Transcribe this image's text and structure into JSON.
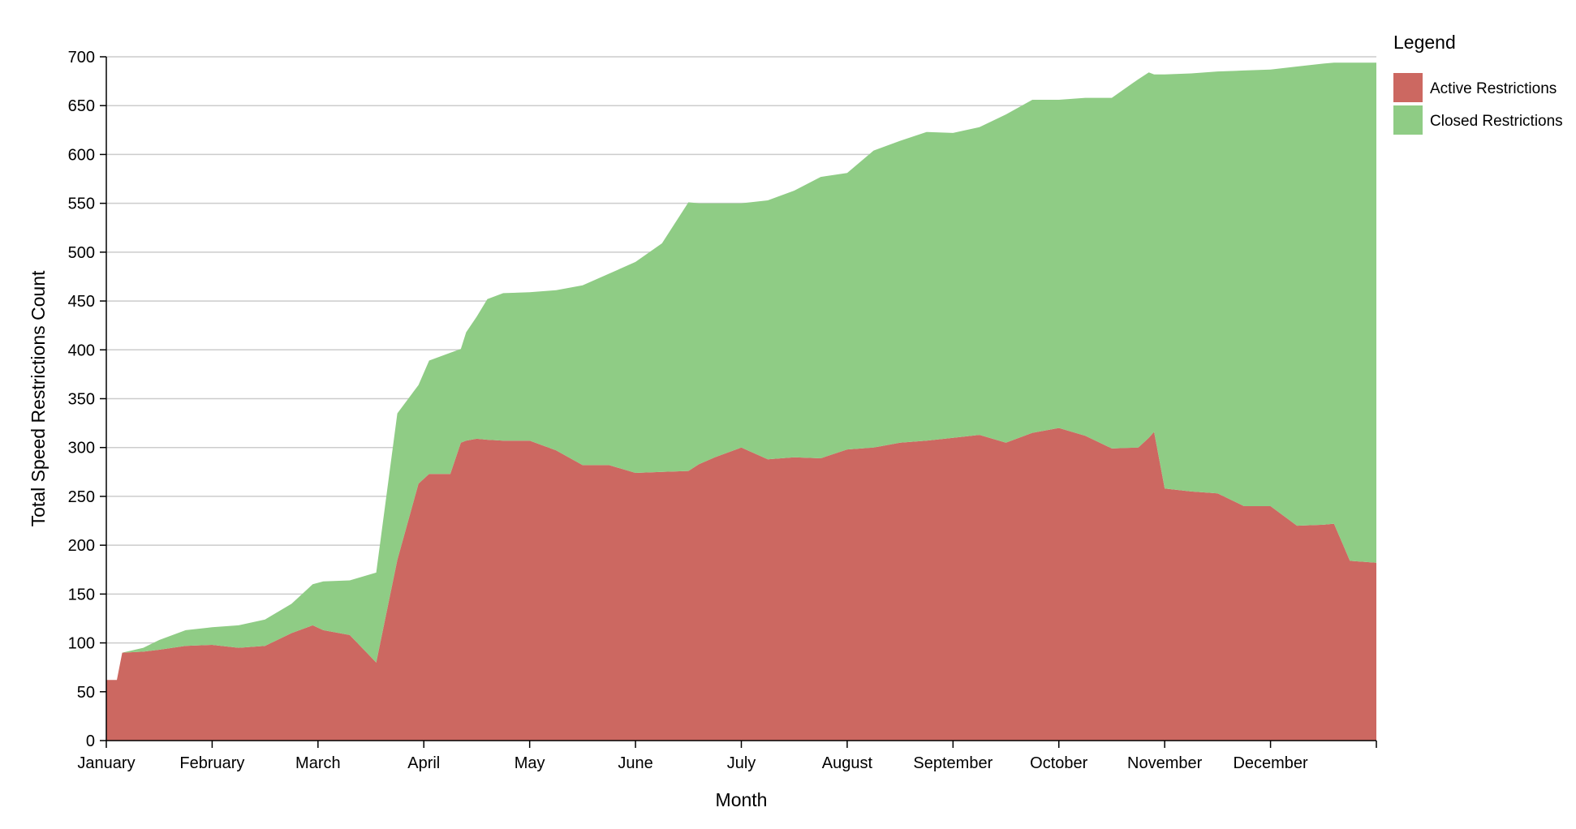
{
  "chart_data": {
    "type": "area",
    "stacked": true,
    "xlabel": "Month",
    "ylabel": "Total Speed Restrictions Count",
    "ylim": [
      0,
      700
    ],
    "yticks": [
      0,
      50,
      100,
      150,
      200,
      250,
      300,
      350,
      400,
      450,
      500,
      550,
      600,
      650,
      700
    ],
    "xticks": [
      "January",
      "February",
      "March",
      "April",
      "May",
      "June",
      "July",
      "August",
      "September",
      "October",
      "November",
      "December"
    ],
    "grid": "horizontal",
    "legend": {
      "title": "Legend",
      "placement": "top-right",
      "items": [
        "Active Restrictions",
        "Closed Restrictions"
      ]
    },
    "x": [
      0,
      0.1,
      0.15,
      0.35,
      0.5,
      0.75,
      1.0,
      1.25,
      1.5,
      1.75,
      1.95,
      2.05,
      2.3,
      2.55,
      2.75,
      2.95,
      3.05,
      3.25,
      3.35,
      3.4,
      3.5,
      3.6,
      3.75,
      4.0,
      4.25,
      4.5,
      4.75,
      5.0,
      5.25,
      5.5,
      5.6,
      5.75,
      6.0,
      6.25,
      6.5,
      6.75,
      7.0,
      7.25,
      7.5,
      7.75,
      8.0,
      8.25,
      8.5,
      8.75,
      9.0,
      9.25,
      9.5,
      9.75,
      9.85,
      9.9,
      10.0,
      10.25,
      10.5,
      10.75,
      11.0,
      11.25,
      11.5,
      11.6,
      11.75,
      12.0
    ],
    "series": [
      {
        "name": "Active Restrictions",
        "color": "#cc6861",
        "values": [
          62,
          62,
          90,
          91,
          93,
          97,
          98,
          95,
          97,
          110,
          118,
          113,
          108,
          80,
          185,
          263,
          273,
          273,
          305,
          307,
          309,
          308,
          307,
          307,
          297,
          282,
          282,
          274,
          275,
          276,
          283,
          290,
          300,
          288,
          290,
          289,
          298,
          300,
          305,
          307,
          310,
          313,
          305,
          315,
          320,
          312,
          299,
          300,
          310,
          316,
          258,
          255,
          253,
          240,
          240,
          220,
          221,
          222,
          184,
          182
        ]
      },
      {
        "name": "Closed Restrictions",
        "color": "#8fcc85",
        "values": [
          0,
          0,
          0,
          4,
          10,
          16,
          18,
          23,
          27,
          30,
          42,
          50,
          56,
          92,
          150,
          101,
          116,
          124,
          96,
          111,
          125,
          144,
          151,
          152,
          164,
          184,
          196,
          216,
          234,
          275,
          267,
          260,
          250,
          265,
          273,
          288,
          283,
          304,
          309,
          316,
          312,
          315,
          336,
          341,
          336,
          346,
          359,
          377,
          374,
          366,
          424,
          428,
          432,
          446,
          447,
          470,
          472,
          472,
          510,
          512
        ]
      }
    ]
  }
}
